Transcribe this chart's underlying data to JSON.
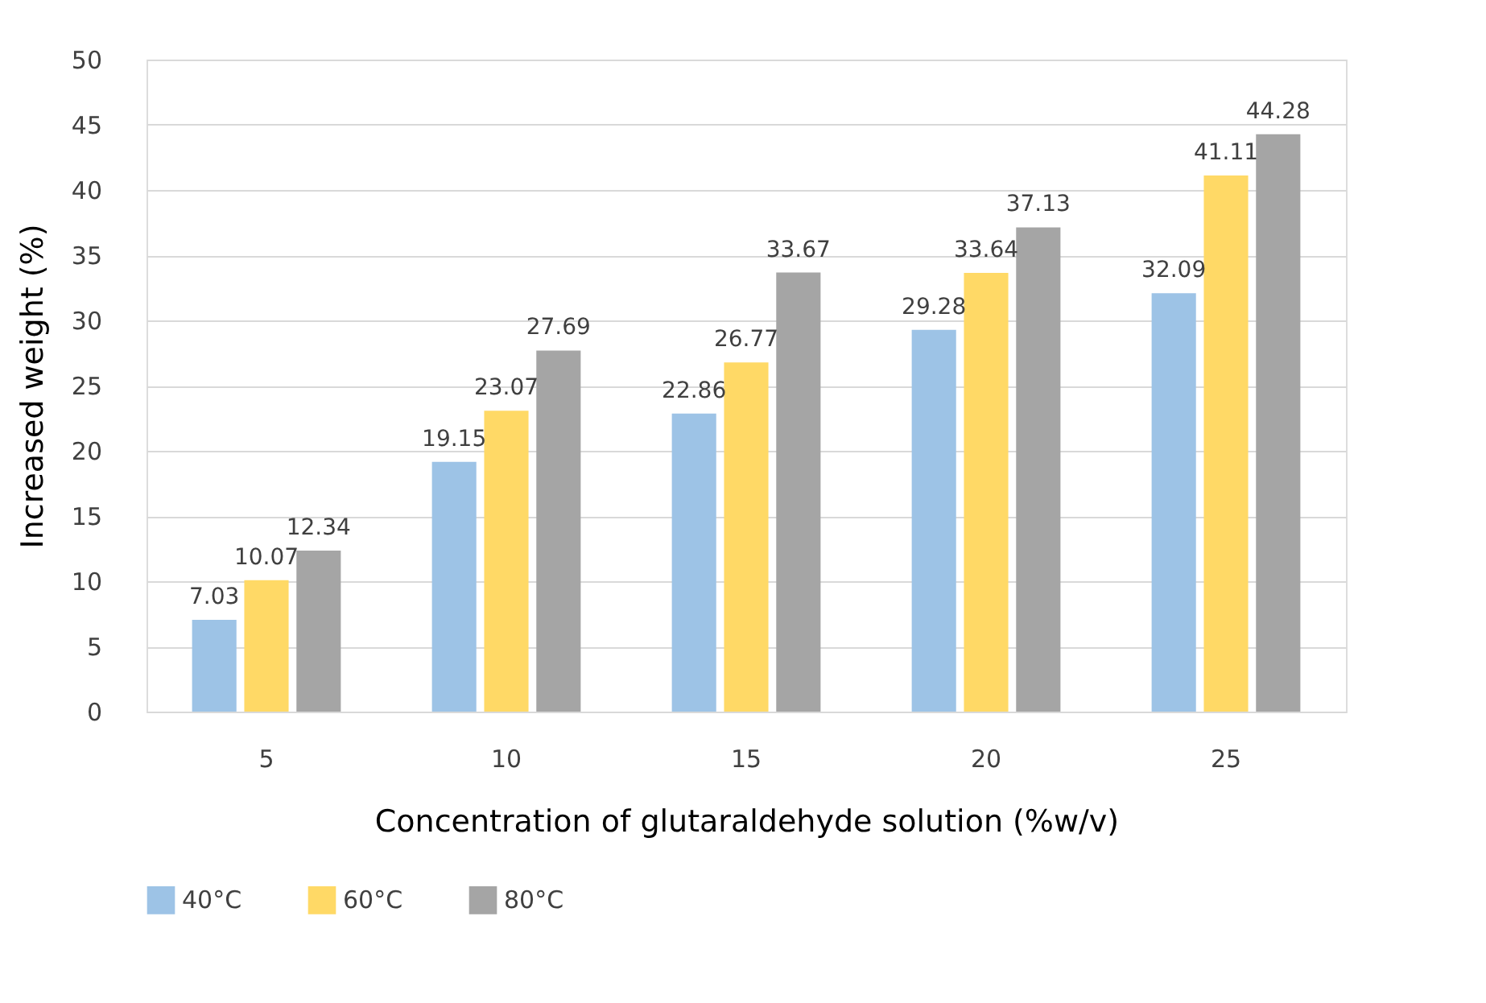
{
  "chart_data": {
    "type": "bar",
    "xlabel": "Concentration of glutaraldehyde solution (%w/v)",
    "ylabel": "Increased weight (%)",
    "categories": [
      "5",
      "10",
      "15",
      "20",
      "25"
    ],
    "series": [
      {
        "name": "40°C",
        "color": "#9dc3e6",
        "values": [
          7.03,
          19.15,
          22.86,
          29.28,
          32.09
        ]
      },
      {
        "name": "60°C",
        "color": "#ffd966",
        "values": [
          10.07,
          23.07,
          26.77,
          33.64,
          41.11
        ]
      },
      {
        "name": "80°C",
        "color": "#a5a5a5",
        "values": [
          12.34,
          27.69,
          33.67,
          37.13,
          44.28
        ]
      }
    ],
    "ylim": [
      0,
      50
    ],
    "yticks": [
      0,
      5,
      10,
      15,
      20,
      25,
      30,
      35,
      40,
      45,
      50
    ],
    "grid": "y",
    "legend": "bottom",
    "data_labels": true
  }
}
